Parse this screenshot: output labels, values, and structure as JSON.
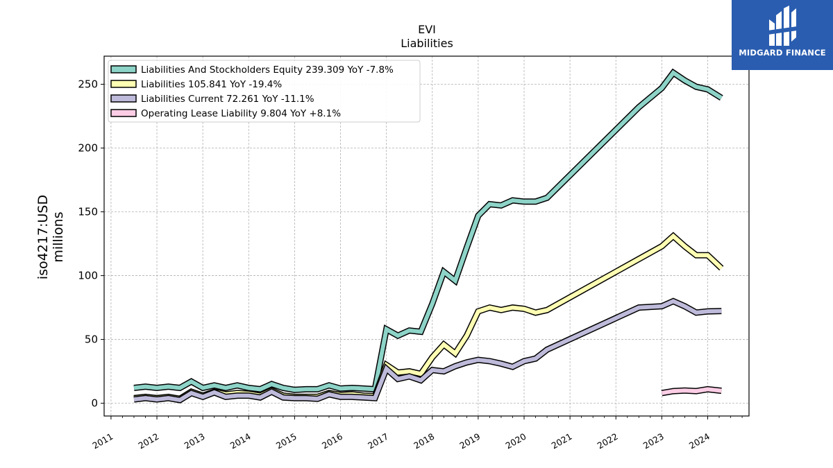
{
  "logo": {
    "text": "MIDGARD FINANCE"
  },
  "chart_data": {
    "type": "line",
    "title": "EVI",
    "subtitle": "Liabilities",
    "ylabel": "iso4217:USD",
    "ylabel2": "millions",
    "xlabel": "",
    "xlim": [
      2010.85,
      2024.9
    ],
    "ylim": [
      -10,
      272
    ],
    "grid": true,
    "legend_position": "top-left",
    "yticks": [
      0,
      50,
      100,
      150,
      200,
      250
    ],
    "xticks": [
      2011,
      2012,
      2013,
      2014,
      2015,
      2016,
      2017,
      2018,
      2019,
      2020,
      2021,
      2022,
      2023,
      2024
    ],
    "series": [
      {
        "name": "Liabilities And Stockholders Equity",
        "legend": "Liabilities And Stockholders Equity  239.309 YoY -7.8%",
        "color": "#8dd3c7",
        "x": [
          2011.5,
          2011.75,
          2012.0,
          2012.25,
          2012.5,
          2012.75,
          2013.0,
          2013.25,
          2013.5,
          2013.75,
          2014.0,
          2014.25,
          2014.5,
          2014.75,
          2015.0,
          2015.25,
          2015.5,
          2015.75,
          2016.0,
          2016.25,
          2016.5,
          2016.75,
          2017.0,
          2017.25,
          2017.5,
          2017.75,
          2018.0,
          2018.25,
          2018.5,
          2018.75,
          2019.0,
          2019.25,
          2019.5,
          2019.75,
          2020.0,
          2020.25,
          2020.5,
          2022.5,
          2023.0,
          2023.25,
          2023.5,
          2023.75,
          2024.0,
          2024.3
        ],
        "values": [
          12,
          13,
          12,
          13,
          12,
          17,
          12,
          14,
          12,
          14,
          12,
          11,
          15,
          12,
          10.5,
          11,
          11,
          14,
          11.5,
          12,
          11.5,
          11,
          58,
          53,
          57,
          56,
          78,
          103,
          96,
          122,
          147,
          156,
          155,
          159,
          158,
          158,
          161,
          232,
          247,
          259,
          253,
          248,
          246,
          239.309
        ]
      },
      {
        "name": "Liabilities",
        "legend": "Liabilities  105.841 YoY -19.4%",
        "color": "#ffffb3",
        "x": [
          2011.5,
          2011.75,
          2012.0,
          2012.25,
          2012.5,
          2012.75,
          2013.0,
          2013.25,
          2013.5,
          2013.75,
          2014.0,
          2014.25,
          2014.5,
          2014.75,
          2015.0,
          2015.25,
          2015.5,
          2015.75,
          2016.0,
          2016.25,
          2016.5,
          2016.75,
          2017.0,
          2017.25,
          2017.5,
          2017.75,
          2018.0,
          2018.25,
          2018.5,
          2018.75,
          2019.0,
          2019.25,
          2019.5,
          2019.75,
          2020.0,
          2020.25,
          2020.5,
          2022.5,
          2023.0,
          2023.25,
          2023.5,
          2023.75,
          2024.0,
          2024.3
        ],
        "values": [
          4,
          5,
          4,
          5,
          3.5,
          9,
          6,
          9,
          7,
          8,
          7.5,
          6,
          10,
          6,
          5,
          5,
          5,
          8,
          6.5,
          7,
          6,
          5.5,
          30,
          24,
          25,
          23,
          36,
          46,
          39,
          53,
          72,
          75,
          73,
          75,
          74,
          71,
          73,
          113,
          123,
          131,
          123,
          116,
          116,
          105.841
        ]
      },
      {
        "name": "Liabilities Current",
        "legend": "Liabilities Current  72.261 YoY -11.1%",
        "color": "#bebada",
        "x": [
          2011.5,
          2011.75,
          2012.0,
          2012.25,
          2012.5,
          2012.75,
          2013.0,
          2013.25,
          2013.5,
          2013.75,
          2014.0,
          2014.25,
          2014.5,
          2014.75,
          2015.0,
          2015.25,
          2015.5,
          2015.75,
          2016.0,
          2016.25,
          2016.5,
          2016.75,
          2017.0,
          2017.25,
          2017.5,
          2017.75,
          2018.0,
          2018.25,
          2018.5,
          2018.75,
          2019.0,
          2019.25,
          2019.5,
          2019.75,
          2020.0,
          2020.25,
          2020.5,
          2022.5,
          2023.0,
          2023.25,
          2023.5,
          2023.75,
          2024.0,
          2024.3
        ],
        "values": [
          3,
          4,
          3,
          4,
          2.5,
          8,
          5,
          8.5,
          5,
          6,
          6,
          4.5,
          9,
          4.5,
          4,
          4,
          3.5,
          7,
          5,
          5,
          4.5,
          4,
          27,
          19,
          21,
          18,
          26,
          25,
          29,
          32,
          34,
          33,
          31,
          28.5,
          33,
          35,
          42,
          75,
          76,
          80,
          76,
          71,
          72,
          72.261
        ]
      },
      {
        "name": "Operating Lease Liability",
        "legend": "Operating Lease Liability  9.804 YoY +8.1%",
        "color": "#fccde5",
        "x": [
          2023.0,
          2023.25,
          2023.5,
          2023.75,
          2024.0,
          2024.3
        ],
        "values": [
          8,
          9.5,
          10,
          9.5,
          11,
          9.804
        ]
      }
    ]
  }
}
